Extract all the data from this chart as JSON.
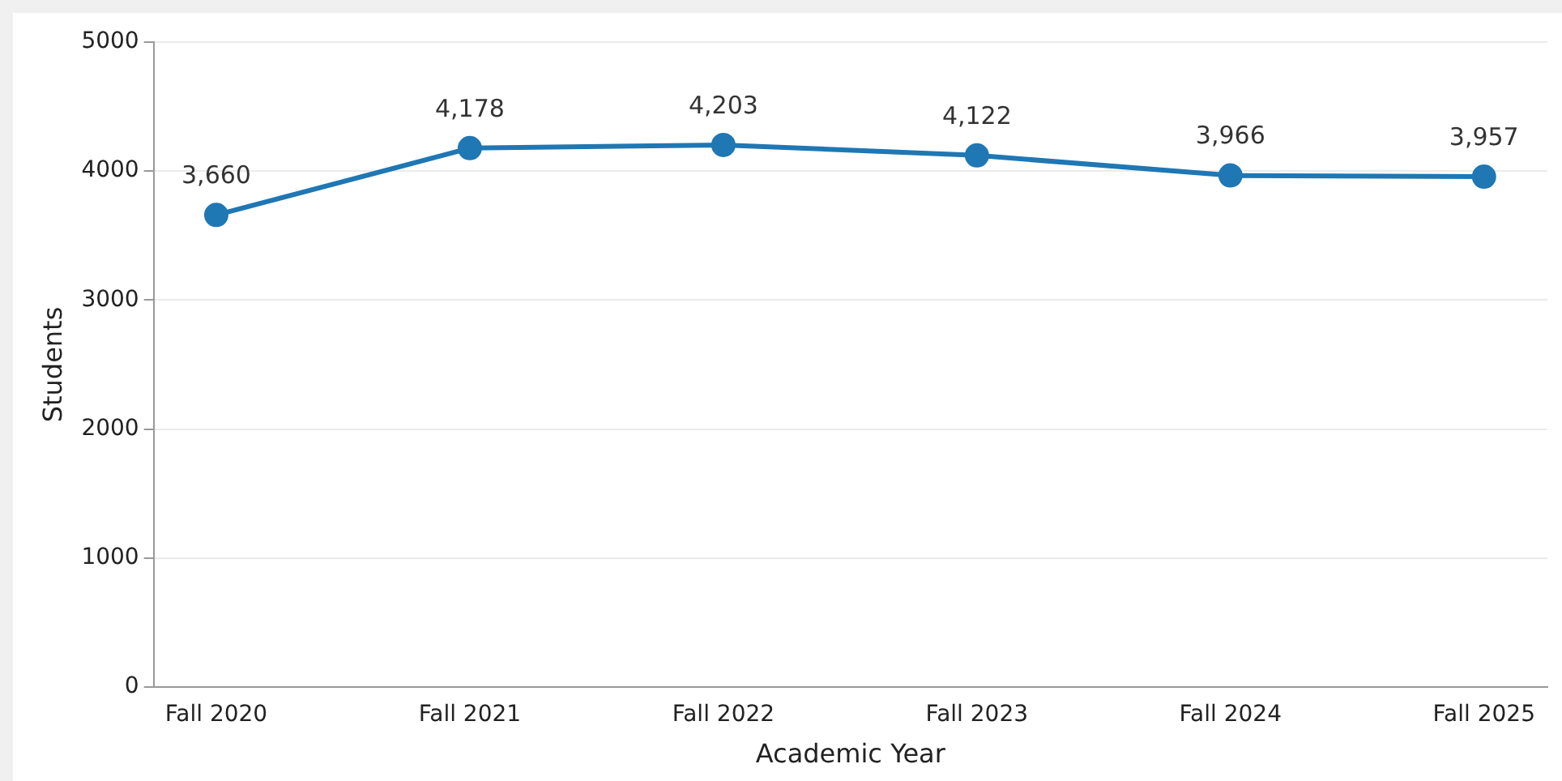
{
  "chart_data": {
    "type": "line",
    "xlabel": "Academic Year",
    "ylabel": "Students",
    "categories": [
      "Fall 2020",
      "Fall 2021",
      "Fall 2022",
      "Fall 2023",
      "Fall 2024",
      "Fall 2025"
    ],
    "series": [
      {
        "color": "#1f77b4",
        "values": [
          3660,
          4178,
          4203,
          4122,
          3966,
          3957
        ],
        "value_labels": [
          "3,660",
          "4,178",
          "4,203",
          "4,122",
          "3,966",
          "3,957"
        ]
      }
    ],
    "ylim": [
      0,
      5000
    ],
    "yticks": [
      0,
      1000,
      2000,
      3000,
      4000,
      5000
    ],
    "grid": "y",
    "legend": false,
    "marker": "circle",
    "line_style": "solid"
  }
}
